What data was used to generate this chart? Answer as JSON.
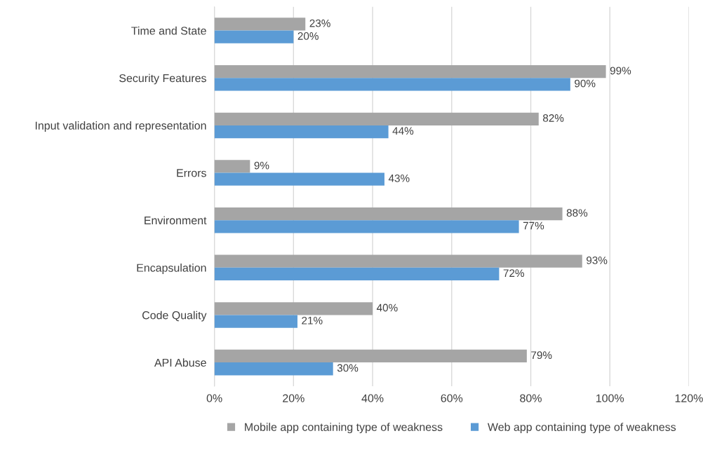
{
  "chart_data": {
    "type": "bar",
    "orientation": "horizontal",
    "categories": [
      "Time and State",
      "Security Features",
      "Input validation and representation",
      "Errors",
      "Environment",
      "Encapsulation",
      "Code Quality",
      "API Abuse"
    ],
    "series": [
      {
        "name": "Mobile app containing type of weakness",
        "color": "#a5a5a5",
        "values": [
          23,
          99,
          82,
          9,
          88,
          93,
          40,
          79
        ],
        "value_labels": [
          "23%",
          "99%",
          "82%",
          "9%",
          "88%",
          "93%",
          "40%",
          "79%"
        ]
      },
      {
        "name": "Web app containing type of weakness",
        "color": "#5b9bd5",
        "values": [
          20,
          90,
          44,
          43,
          77,
          72,
          21,
          30
        ],
        "value_labels": [
          "20%",
          "90%",
          "44%",
          "43%",
          "77%",
          "72%",
          "21%",
          "30%"
        ]
      }
    ],
    "xlim": [
      0,
      120
    ],
    "xticks": [
      {
        "value": 0,
        "label": "0%"
      },
      {
        "value": 20,
        "label": "20%"
      },
      {
        "value": 40,
        "label": "40%"
      },
      {
        "value": 60,
        "label": "60%"
      },
      {
        "value": 80,
        "label": "80%"
      },
      {
        "value": 100,
        "label": "100%"
      },
      {
        "value": 120,
        "label": "120%"
      }
    ],
    "grid": "x",
    "legend": "bottom"
  }
}
